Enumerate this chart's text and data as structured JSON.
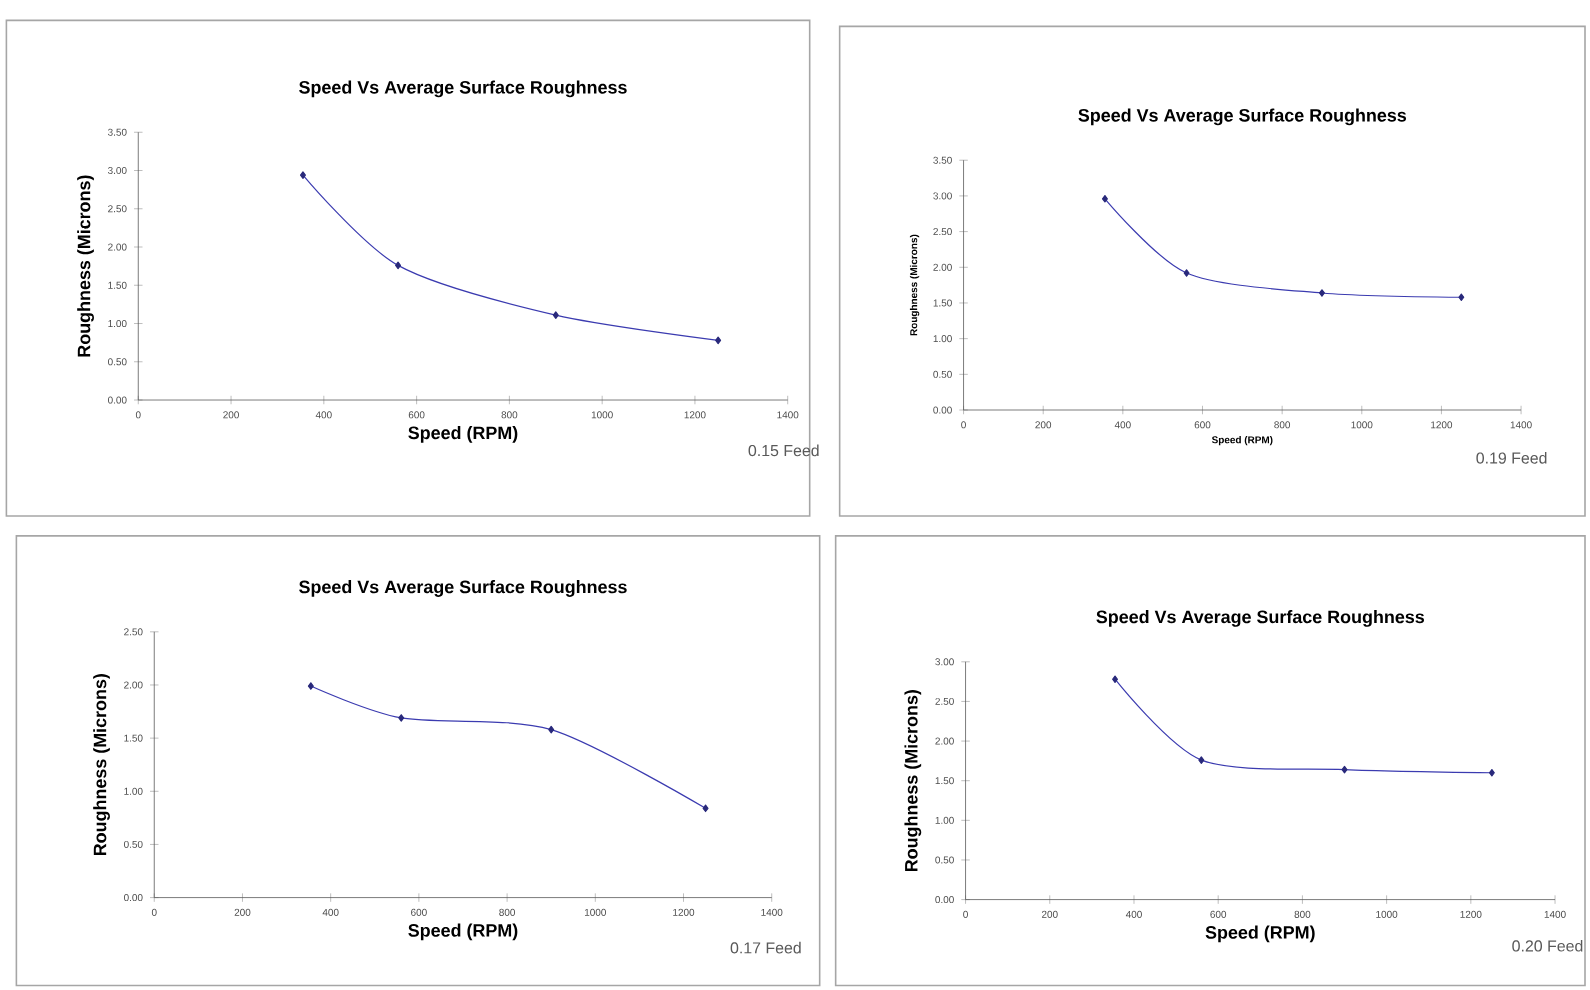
{
  "chart_data": [
    {
      "type": "line",
      "title": "Speed Vs Average  Surface Roughness",
      "xlabel": "Speed (RPM)",
      "ylabel": "Roughness (Microns)",
      "annotations": [
        "0.15 Feed"
      ],
      "x": [
        355,
        560,
        900,
        1250
      ],
      "values": [
        2.94,
        1.76,
        1.11,
        0.78
      ],
      "color": "#3b3bb0",
      "marker": "diamond",
      "xlim": [
        0,
        1400
      ],
      "ylim": [
        0,
        3.5
      ],
      "xticks": [
        0,
        200,
        400,
        600,
        800,
        1000,
        1200,
        1400
      ],
      "yticks": [
        {
          "value": 0,
          "label": "0.00"
        },
        {
          "value": 0.5,
          "label": "0.50"
        },
        {
          "value": 1,
          "label": "1.00"
        },
        {
          "value": 1.5,
          "label": "1.50"
        },
        {
          "value": 2,
          "label": "2.00"
        },
        {
          "value": 2.5,
          "label": "2.50"
        },
        {
          "value": 3,
          "label": "3.00"
        },
        {
          "value": 3.5,
          "label": "3.50"
        }
      ]
    },
    {
      "type": "line",
      "title": "Speed Vs Average  Surface Roughness",
      "xlabel": "Speed (RPM)",
      "ylabel": "Roughness (Microns)",
      "annotations": [
        "0.19 Feed"
      ],
      "x": [
        355,
        560,
        900,
        1250
      ],
      "values": [
        2.96,
        1.92,
        1.64,
        1.58
      ],
      "color": "#3b3bb0",
      "marker": "diamond",
      "xlim": [
        0,
        1400
      ],
      "ylim": [
        0,
        3.5
      ],
      "xticks": [
        0,
        200,
        400,
        600,
        800,
        1000,
        1200,
        1400
      ],
      "yticks": [
        {
          "value": 0,
          "label": "0.00"
        },
        {
          "value": 0.5,
          "label": "0.50"
        },
        {
          "value": 1,
          "label": "1.00"
        },
        {
          "value": 1.5,
          "label": "1.50"
        },
        {
          "value": 2,
          "label": "2.00"
        },
        {
          "value": 2.5,
          "label": "2.50"
        },
        {
          "value": 3,
          "label": "3.00"
        },
        {
          "value": 3.5,
          "label": "3.50"
        }
      ]
    },
    {
      "type": "line",
      "title": "Speed Vs Average  Surface Roughness",
      "xlabel": "Speed (RPM)",
      "ylabel": "Roughness (Microns)",
      "annotations": [
        "0.17 Feed"
      ],
      "x": [
        355,
        560,
        900,
        1250
      ],
      "values": [
        1.99,
        1.69,
        1.58,
        0.84
      ],
      "color": "#3b3bb0",
      "marker": "diamond",
      "xlim": [
        0,
        1400
      ],
      "ylim": [
        0,
        2.5
      ],
      "xticks": [
        0,
        200,
        400,
        600,
        800,
        1000,
        1200,
        1400
      ],
      "yticks": [
        {
          "value": 0,
          "label": "0.00"
        },
        {
          "value": 0.5,
          "label": "0.50"
        },
        {
          "value": 1,
          "label": "1.00"
        },
        {
          "value": 1.5,
          "label": "1.50"
        },
        {
          "value": 2,
          "label": "2.00"
        },
        {
          "value": 2.5,
          "label": "2.50"
        }
      ]
    },
    {
      "type": "line",
      "title": "Speed Vs Average  Surface Roughness",
      "xlabel": "Speed (RPM)",
      "ylabel": "Roughness (Microns)",
      "annotations": [
        "0.20 Feed"
      ],
      "x": [
        355,
        560,
        900,
        1250
      ],
      "values": [
        2.78,
        1.76,
        1.64,
        1.6
      ],
      "color": "#3b3bb0",
      "marker": "diamond",
      "xlim": [
        0,
        1400
      ],
      "ylim": [
        0,
        3
      ],
      "xticks": [
        0,
        200,
        400,
        600,
        800,
        1000,
        1200,
        1400
      ],
      "yticks": [
        {
          "value": 0,
          "label": "0.00"
        },
        {
          "value": 0.5,
          "label": "0.50"
        },
        {
          "value": 1,
          "label": "1.00"
        },
        {
          "value": 1.5,
          "label": "1.50"
        },
        {
          "value": 2,
          "label": "2.00"
        },
        {
          "value": 2.5,
          "label": "2.50"
        },
        {
          "value": 3,
          "label": "3.00"
        }
      ]
    }
  ]
}
